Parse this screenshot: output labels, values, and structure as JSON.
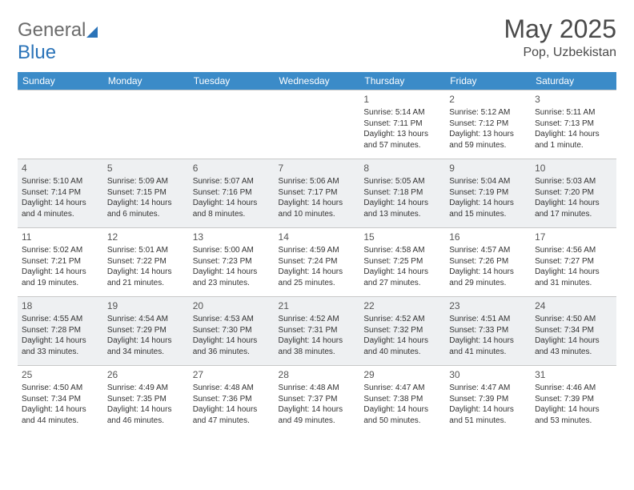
{
  "brand": {
    "part1": "General",
    "part2": "Blue"
  },
  "title": "May 2025",
  "location": "Pop, Uzbekistan",
  "colors": {
    "header_bg": "#3b8bc8",
    "header_text": "#ffffff",
    "zebra_bg": "#eef0f2",
    "border": "#c8c8c8",
    "body_text": "#333333",
    "title_text": "#4a4a4a",
    "logo_gray": "#6b6b6b",
    "logo_blue": "#2a73b8"
  },
  "weekdays": [
    "Sunday",
    "Monday",
    "Tuesday",
    "Wednesday",
    "Thursday",
    "Friday",
    "Saturday"
  ],
  "layout": {
    "columns": 7,
    "rows": 5,
    "first_weekday_index": 4
  },
  "days": [
    {
      "n": 1,
      "sunrise": "5:14 AM",
      "sunset": "7:11 PM",
      "daylight": "13 hours and 57 minutes."
    },
    {
      "n": 2,
      "sunrise": "5:12 AM",
      "sunset": "7:12 PM",
      "daylight": "13 hours and 59 minutes."
    },
    {
      "n": 3,
      "sunrise": "5:11 AM",
      "sunset": "7:13 PM",
      "daylight": "14 hours and 1 minute."
    },
    {
      "n": 4,
      "sunrise": "5:10 AM",
      "sunset": "7:14 PM",
      "daylight": "14 hours and 4 minutes."
    },
    {
      "n": 5,
      "sunrise": "5:09 AM",
      "sunset": "7:15 PM",
      "daylight": "14 hours and 6 minutes."
    },
    {
      "n": 6,
      "sunrise": "5:07 AM",
      "sunset": "7:16 PM",
      "daylight": "14 hours and 8 minutes."
    },
    {
      "n": 7,
      "sunrise": "5:06 AM",
      "sunset": "7:17 PM",
      "daylight": "14 hours and 10 minutes."
    },
    {
      "n": 8,
      "sunrise": "5:05 AM",
      "sunset": "7:18 PM",
      "daylight": "14 hours and 13 minutes."
    },
    {
      "n": 9,
      "sunrise": "5:04 AM",
      "sunset": "7:19 PM",
      "daylight": "14 hours and 15 minutes."
    },
    {
      "n": 10,
      "sunrise": "5:03 AM",
      "sunset": "7:20 PM",
      "daylight": "14 hours and 17 minutes."
    },
    {
      "n": 11,
      "sunrise": "5:02 AM",
      "sunset": "7:21 PM",
      "daylight": "14 hours and 19 minutes."
    },
    {
      "n": 12,
      "sunrise": "5:01 AM",
      "sunset": "7:22 PM",
      "daylight": "14 hours and 21 minutes."
    },
    {
      "n": 13,
      "sunrise": "5:00 AM",
      "sunset": "7:23 PM",
      "daylight": "14 hours and 23 minutes."
    },
    {
      "n": 14,
      "sunrise": "4:59 AM",
      "sunset": "7:24 PM",
      "daylight": "14 hours and 25 minutes."
    },
    {
      "n": 15,
      "sunrise": "4:58 AM",
      "sunset": "7:25 PM",
      "daylight": "14 hours and 27 minutes."
    },
    {
      "n": 16,
      "sunrise": "4:57 AM",
      "sunset": "7:26 PM",
      "daylight": "14 hours and 29 minutes."
    },
    {
      "n": 17,
      "sunrise": "4:56 AM",
      "sunset": "7:27 PM",
      "daylight": "14 hours and 31 minutes."
    },
    {
      "n": 18,
      "sunrise": "4:55 AM",
      "sunset": "7:28 PM",
      "daylight": "14 hours and 33 minutes."
    },
    {
      "n": 19,
      "sunrise": "4:54 AM",
      "sunset": "7:29 PM",
      "daylight": "14 hours and 34 minutes."
    },
    {
      "n": 20,
      "sunrise": "4:53 AM",
      "sunset": "7:30 PM",
      "daylight": "14 hours and 36 minutes."
    },
    {
      "n": 21,
      "sunrise": "4:52 AM",
      "sunset": "7:31 PM",
      "daylight": "14 hours and 38 minutes."
    },
    {
      "n": 22,
      "sunrise": "4:52 AM",
      "sunset": "7:32 PM",
      "daylight": "14 hours and 40 minutes."
    },
    {
      "n": 23,
      "sunrise": "4:51 AM",
      "sunset": "7:33 PM",
      "daylight": "14 hours and 41 minutes."
    },
    {
      "n": 24,
      "sunrise": "4:50 AM",
      "sunset": "7:34 PM",
      "daylight": "14 hours and 43 minutes."
    },
    {
      "n": 25,
      "sunrise": "4:50 AM",
      "sunset": "7:34 PM",
      "daylight": "14 hours and 44 minutes."
    },
    {
      "n": 26,
      "sunrise": "4:49 AM",
      "sunset": "7:35 PM",
      "daylight": "14 hours and 46 minutes."
    },
    {
      "n": 27,
      "sunrise": "4:48 AM",
      "sunset": "7:36 PM",
      "daylight": "14 hours and 47 minutes."
    },
    {
      "n": 28,
      "sunrise": "4:48 AM",
      "sunset": "7:37 PM",
      "daylight": "14 hours and 49 minutes."
    },
    {
      "n": 29,
      "sunrise": "4:47 AM",
      "sunset": "7:38 PM",
      "daylight": "14 hours and 50 minutes."
    },
    {
      "n": 30,
      "sunrise": "4:47 AM",
      "sunset": "7:39 PM",
      "daylight": "14 hours and 51 minutes."
    },
    {
      "n": 31,
      "sunrise": "4:46 AM",
      "sunset": "7:39 PM",
      "daylight": "14 hours and 53 minutes."
    }
  ],
  "labels": {
    "sunrise": "Sunrise:",
    "sunset": "Sunset:",
    "daylight": "Daylight:"
  }
}
